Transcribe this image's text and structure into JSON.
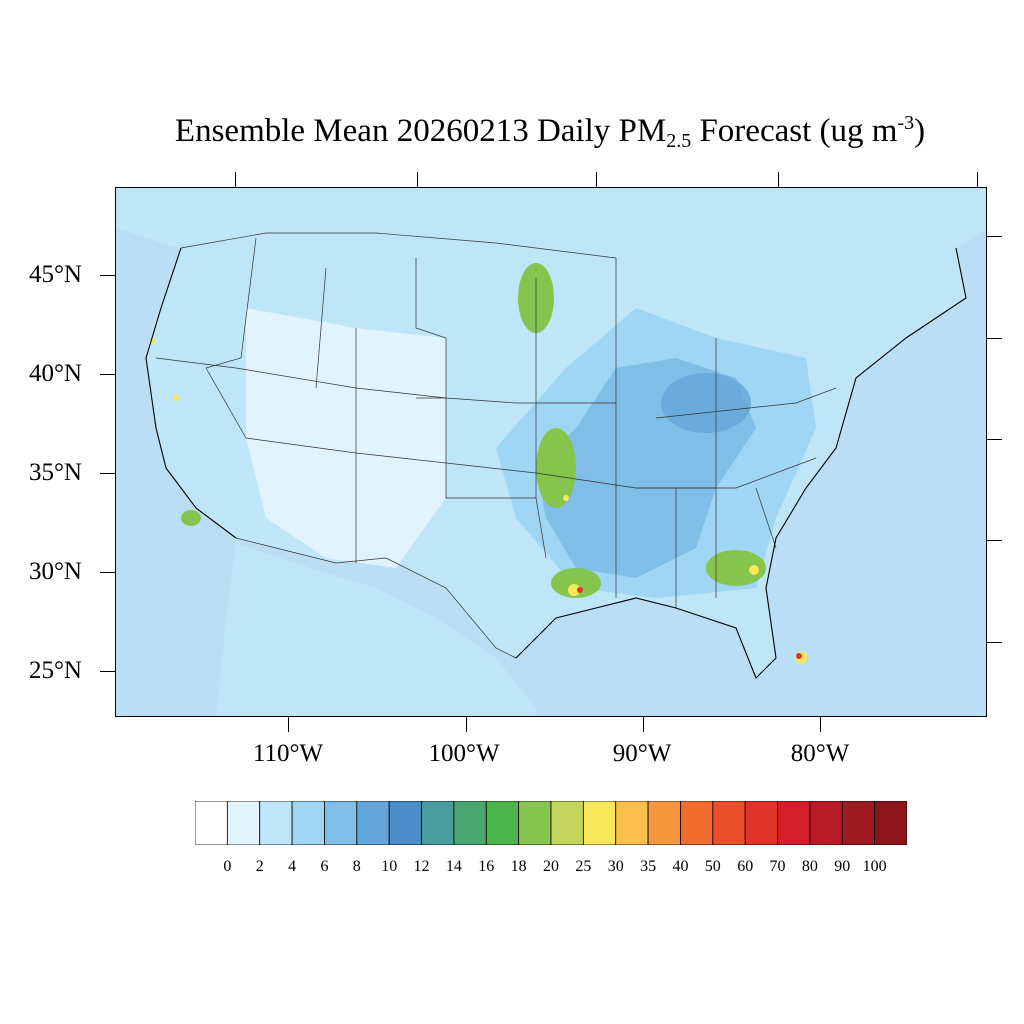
{
  "title": {
    "prefix": "Ensemble Mean 20260213 Daily PM",
    "sub": "2.5",
    "middle": " Forecast (ug m",
    "sup": "-3",
    "suffix": ")"
  },
  "axes": {
    "lat_labels": [
      "45°N",
      "40°N",
      "35°N",
      "30°N",
      "25°N"
    ],
    "lon_labels": [
      "110°W",
      "100°W",
      "90°W",
      "80°W"
    ]
  },
  "colorbar": {
    "levels": [
      "0",
      "2",
      "4",
      "6",
      "8",
      "10",
      "12",
      "14",
      "16",
      "18",
      "20",
      "25",
      "30",
      "35",
      "40",
      "50",
      "60",
      "70",
      "80",
      "90",
      "100"
    ],
    "colors": [
      "#ffffff",
      "#e1f3fc",
      "#bee5f8",
      "#9ed6f4",
      "#80bde7",
      "#64a6da",
      "#4a8dc8",
      "#4a9b9c",
      "#48a66e",
      "#4cb54a",
      "#85c54d",
      "#c3d65b",
      "#f8e75a",
      "#f9bf4a",
      "#f7963c",
      "#f26b2f",
      "#ea4f2b",
      "#e03428",
      "#d41e2a",
      "#b81b25",
      "#a01a22",
      "#8c1619"
    ]
  },
  "map_colors": {
    "ocean": "#b9def5",
    "land_low": "#e1f3fc",
    "land_mid": "#bee5f8",
    "land_high": "#9ed6f4",
    "land_higher": "#80bde7",
    "land_peak": "#64a6da",
    "hot_green": "#85c54d",
    "hot_yellow": "#f8e75a",
    "hot_red": "#e03428"
  }
}
